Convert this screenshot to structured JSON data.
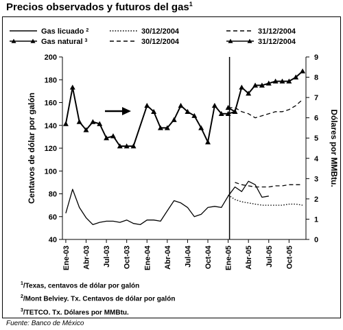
{
  "title": "Precios observados y futuros del gas",
  "title_sup": "1",
  "footnotes": [
    {
      "mark": "1",
      "text": "/Texas, centavos de dólar por galón"
    },
    {
      "mark": "2",
      "text": "/Mont Belviey. Tx. Centavos de dólar por galón"
    },
    {
      "mark": "3",
      "text": "/TETCO. Tx. Dólares por MMBtu."
    }
  ],
  "source": "Fuente: Banco de México",
  "chart_data": {
    "type": "line",
    "ylabel_left": "Centavos de dólar por galón",
    "ylabel_right": "Dólares por MMBtu.",
    "ylim_left": [
      40,
      200
    ],
    "ylim_right": [
      0,
      9
    ],
    "yticks_left": [
      40,
      60,
      80,
      100,
      120,
      140,
      160,
      180,
      200
    ],
    "yticks_right": [
      0,
      1,
      2,
      3,
      4,
      5,
      6,
      7,
      8,
      9
    ],
    "x_start": "2003-01",
    "x_end": "2005-12",
    "x_ticks": [
      {
        "date": "2003-01",
        "label": "Ene-03"
      },
      {
        "date": "2003-04",
        "label": "Abr-03"
      },
      {
        "date": "2003-07",
        "label": "Jul-03"
      },
      {
        "date": "2003-10",
        "label": "Oct-03"
      },
      {
        "date": "2004-01",
        "label": "Ene-04"
      },
      {
        "date": "2004-04",
        "label": "Abr-04"
      },
      {
        "date": "2004-07",
        "label": "Jul-04"
      },
      {
        "date": "2004-10",
        "label": "Oct-04"
      },
      {
        "date": "2005-01",
        "label": "Ene-05"
      },
      {
        "date": "2005-04",
        "label": "Abr-05"
      },
      {
        "date": "2005-07",
        "label": "Jul-05"
      },
      {
        "date": "2005-10",
        "label": "Oct-05"
      }
    ],
    "divider_date": "2005-01",
    "legend": [
      {
        "label": "Gas licuado",
        "sup": "2",
        "style": "solid",
        "marker": "none"
      },
      {
        "label": "30/12/2004",
        "style": "dotted",
        "marker": "none"
      },
      {
        "label": "31/12/2004",
        "style": "dashed",
        "marker": "none"
      },
      {
        "label": "Gas natural",
        "sup": "3",
        "style": "solid",
        "marker": "triangle"
      },
      {
        "label": "30/12/2004",
        "style": "dashed",
        "marker": "none"
      },
      {
        "label": "31/12/2004",
        "style": "solid",
        "marker": "triangle"
      }
    ],
    "series": [
      {
        "name": "Gas licuado",
        "axis": "left",
        "style": "solid",
        "marker": "none",
        "points": [
          [
            "2003-01",
            63
          ],
          [
            "2003-02",
            84
          ],
          [
            "2003-03",
            68
          ],
          [
            "2003-04",
            59
          ],
          [
            "2003-05",
            53
          ],
          [
            "2003-06",
            55
          ],
          [
            "2003-07",
            56
          ],
          [
            "2003-08",
            56
          ],
          [
            "2003-09",
            55
          ],
          [
            "2003-10",
            57
          ],
          [
            "2003-11",
            54
          ],
          [
            "2003-12",
            53
          ],
          [
            "2004-01",
            57
          ],
          [
            "2004-02",
            57
          ],
          [
            "2004-03",
            56
          ],
          [
            "2004-04",
            65
          ],
          [
            "2004-05",
            74
          ],
          [
            "2004-06",
            72
          ],
          [
            "2004-07",
            68
          ],
          [
            "2004-08",
            60
          ],
          [
            "2004-09",
            62
          ],
          [
            "2004-10",
            68
          ],
          [
            "2004-11",
            69
          ],
          [
            "2004-12",
            68
          ],
          [
            "2005-01",
            78
          ],
          [
            "2005-02",
            86
          ],
          [
            "2005-03",
            82
          ],
          [
            "2005-04",
            91
          ],
          [
            "2005-05",
            88
          ],
          [
            "2005-06",
            77
          ],
          [
            "2005-07",
            78
          ]
        ]
      },
      {
        "name": "Gas licuado futuro 30/12/2004",
        "axis": "left",
        "style": "dotted",
        "marker": "none",
        "points": [
          [
            "2005-01",
            79
          ],
          [
            "2005-02",
            75
          ],
          [
            "2005-03",
            73
          ],
          [
            "2005-04",
            72
          ],
          [
            "2005-05",
            71
          ],
          [
            "2005-06",
            70
          ],
          [
            "2005-07",
            70
          ],
          [
            "2005-08",
            70
          ],
          [
            "2005-09",
            70
          ],
          [
            "2005-10",
            71
          ],
          [
            "2005-11",
            71
          ],
          [
            "2005-12",
            70
          ]
        ]
      },
      {
        "name": "Gas licuado futuro 31/12/2004",
        "axis": "left",
        "style": "dashed",
        "marker": "none",
        "points": [
          [
            "2005-02",
            90
          ],
          [
            "2005-03",
            88
          ],
          [
            "2005-04",
            87
          ],
          [
            "2005-05",
            86
          ],
          [
            "2005-06",
            86
          ],
          [
            "2005-07",
            86
          ],
          [
            "2005-08",
            87
          ],
          [
            "2005-09",
            87
          ],
          [
            "2005-10",
            88
          ],
          [
            "2005-11",
            88
          ],
          [
            "2005-12",
            88
          ]
        ]
      },
      {
        "name": "Gas natural",
        "axis": "right",
        "style": "solid",
        "marker": "triangle",
        "points": [
          [
            "2003-01",
            5.7
          ],
          [
            "2003-02",
            7.5
          ],
          [
            "2003-03",
            5.8
          ],
          [
            "2003-04",
            5.4
          ],
          [
            "2003-05",
            5.8
          ],
          [
            "2003-06",
            5.7
          ],
          [
            "2003-07",
            5.0
          ],
          [
            "2003-08",
            5.1
          ],
          [
            "2003-09",
            4.6
          ],
          [
            "2003-10",
            4.6
          ],
          [
            "2003-11",
            4.6
          ],
          [
            "2004-01",
            6.6
          ],
          [
            "2004-02",
            6.3
          ],
          [
            "2004-03",
            5.5
          ],
          [
            "2004-04",
            5.5
          ],
          [
            "2004-05",
            5.9
          ],
          [
            "2004-06",
            6.6
          ],
          [
            "2004-07",
            6.3
          ],
          [
            "2004-08",
            6.1
          ],
          [
            "2004-09",
            5.5
          ],
          [
            "2004-10",
            4.8
          ],
          [
            "2004-11",
            6.6
          ],
          [
            "2004-12",
            6.2
          ],
          [
            "2005-01",
            6.2
          ],
          [
            "2005-02",
            6.3
          ]
        ]
      },
      {
        "name": "Gas natural futuro 30/12/2004",
        "axis": "right",
        "style": "dashed",
        "marker": "none",
        "points": [
          [
            "2005-01",
            6.5
          ],
          [
            "2005-02",
            6.5
          ],
          [
            "2005-03",
            6.3
          ],
          [
            "2005-04",
            6.2
          ],
          [
            "2005-05",
            6.0
          ],
          [
            "2005-06",
            6.1
          ],
          [
            "2005-07",
            6.2
          ],
          [
            "2005-08",
            6.3
          ],
          [
            "2005-09",
            6.3
          ],
          [
            "2005-10",
            6.4
          ],
          [
            "2005-11",
            6.6
          ],
          [
            "2005-12",
            6.9
          ]
        ]
      },
      {
        "name": "Gas natural futuro 31/12/2004",
        "axis": "right",
        "style": "solid",
        "marker": "triangle",
        "points": [
          [
            "2005-01",
            6.5
          ],
          [
            "2005-02",
            6.3
          ],
          [
            "2005-03",
            7.5
          ],
          [
            "2005-04",
            7.2
          ],
          [
            "2005-05",
            7.6
          ],
          [
            "2005-06",
            7.6
          ],
          [
            "2005-07",
            7.7
          ],
          [
            "2005-08",
            7.8
          ],
          [
            "2005-09",
            7.8
          ],
          [
            "2005-10",
            7.8
          ],
          [
            "2005-11",
            8.0
          ],
          [
            "2005-12",
            8.3
          ]
        ]
      }
    ]
  }
}
